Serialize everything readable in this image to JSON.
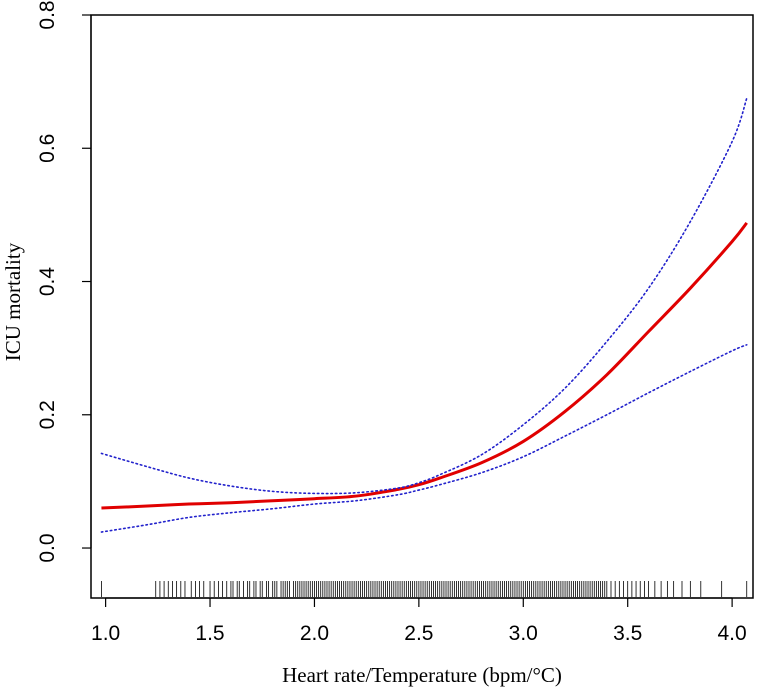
{
  "chart_data": {
    "type": "line",
    "title": "",
    "xlabel": "Heart rate/Temperature (bpm/°C)",
    "ylabel": "ICU mortality",
    "xlim": [
      0.93,
      4.1
    ],
    "ylim": [
      -0.075,
      0.8
    ],
    "x_ticks": [
      1.0,
      1.5,
      2.0,
      2.5,
      3.0,
      3.5,
      4.0
    ],
    "x_tick_labels": [
      "1.0",
      "1.5",
      "2.0",
      "2.5",
      "3.0",
      "3.5",
      "4.0"
    ],
    "y_ticks": [
      0.0,
      0.2,
      0.4,
      0.6,
      0.8
    ],
    "y_tick_labels": [
      "0.0",
      "0.2",
      "0.4",
      "0.6",
      "0.8"
    ],
    "grid": false,
    "legend": false,
    "series": [
      {
        "role": "estimate",
        "style": "solid",
        "color": "#e00000",
        "x": [
          0.98,
          1.2,
          1.4,
          1.6,
          1.8,
          2.0,
          2.2,
          2.4,
          2.5,
          2.6,
          2.8,
          3.0,
          3.2,
          3.4,
          3.6,
          3.8,
          4.0,
          4.07
        ],
        "y": [
          0.06,
          0.063,
          0.066,
          0.068,
          0.071,
          0.074,
          0.078,
          0.088,
          0.095,
          0.105,
          0.128,
          0.16,
          0.205,
          0.26,
          0.325,
          0.39,
          0.46,
          0.488
        ]
      },
      {
        "role": "upper-ci",
        "style": "dotted",
        "color": "#2222cc",
        "x": [
          0.98,
          1.2,
          1.4,
          1.6,
          1.8,
          2.0,
          2.2,
          2.4,
          2.5,
          2.6,
          2.8,
          3.0,
          3.2,
          3.4,
          3.6,
          3.8,
          4.0,
          4.07
        ],
        "y": [
          0.142,
          0.122,
          0.105,
          0.093,
          0.085,
          0.082,
          0.083,
          0.09,
          0.098,
          0.11,
          0.14,
          0.185,
          0.24,
          0.31,
          0.39,
          0.49,
          0.61,
          0.675
        ]
      },
      {
        "role": "lower-ci",
        "style": "dotted",
        "color": "#2222cc",
        "x": [
          0.98,
          1.2,
          1.4,
          1.6,
          1.8,
          2.0,
          2.2,
          2.4,
          2.5,
          2.6,
          2.8,
          3.0,
          3.2,
          3.4,
          3.6,
          3.8,
          4.0,
          4.07
        ],
        "y": [
          0.024,
          0.035,
          0.046,
          0.053,
          0.059,
          0.066,
          0.071,
          0.08,
          0.087,
          0.095,
          0.113,
          0.137,
          0.168,
          0.2,
          0.233,
          0.265,
          0.296,
          0.305
        ]
      }
    ],
    "rug": [
      0.98,
      1.24,
      1.26,
      1.28,
      1.3,
      1.32,
      1.34,
      1.36,
      1.38,
      1.41,
      1.43,
      1.45,
      1.47,
      1.5,
      1.52,
      1.54,
      1.56,
      1.58,
      1.6,
      1.61,
      1.63,
      1.64,
      1.66,
      1.68,
      1.69,
      1.71,
      1.72,
      1.74,
      1.75,
      1.77,
      1.78,
      1.8,
      1.81,
      1.82,
      1.84,
      1.85,
      1.86,
      1.87,
      1.88,
      1.9,
      1.91,
      1.92,
      1.93,
      1.94,
      1.95,
      1.96,
      1.97,
      1.98,
      1.99,
      2.0,
      2.01,
      2.02,
      2.03,
      2.04,
      2.05,
      2.06,
      2.07,
      2.08,
      2.09,
      2.1,
      2.11,
      2.12,
      2.13,
      2.14,
      2.15,
      2.16,
      2.17,
      2.18,
      2.19,
      2.2,
      2.21,
      2.22,
      2.23,
      2.24,
      2.25,
      2.26,
      2.27,
      2.28,
      2.29,
      2.3,
      2.31,
      2.32,
      2.33,
      2.34,
      2.35,
      2.36,
      2.37,
      2.38,
      2.39,
      2.4,
      2.41,
      2.42,
      2.43,
      2.44,
      2.45,
      2.46,
      2.47,
      2.48,
      2.49,
      2.5,
      2.51,
      2.52,
      2.53,
      2.54,
      2.55,
      2.56,
      2.57,
      2.58,
      2.59,
      2.6,
      2.61,
      2.62,
      2.63,
      2.64,
      2.65,
      2.66,
      2.67,
      2.68,
      2.69,
      2.7,
      2.71,
      2.72,
      2.73,
      2.74,
      2.75,
      2.76,
      2.77,
      2.78,
      2.79,
      2.8,
      2.81,
      2.82,
      2.83,
      2.84,
      2.85,
      2.86,
      2.87,
      2.88,
      2.89,
      2.9,
      2.91,
      2.92,
      2.93,
      2.94,
      2.95,
      2.96,
      2.97,
      2.98,
      2.99,
      3.0,
      3.01,
      3.02,
      3.03,
      3.04,
      3.05,
      3.06,
      3.07,
      3.08,
      3.09,
      3.1,
      3.11,
      3.12,
      3.13,
      3.14,
      3.15,
      3.16,
      3.17,
      3.18,
      3.19,
      3.2,
      3.21,
      3.22,
      3.23,
      3.24,
      3.25,
      3.26,
      3.27,
      3.28,
      3.29,
      3.3,
      3.31,
      3.32,
      3.33,
      3.34,
      3.35,
      3.36,
      3.37,
      3.38,
      3.39,
      3.4,
      3.42,
      3.44,
      3.46,
      3.48,
      3.5,
      3.52,
      3.54,
      3.56,
      3.58,
      3.6,
      3.63,
      3.66,
      3.69,
      3.72,
      3.76,
      3.8,
      3.85,
      3.95,
      4.07
    ]
  }
}
